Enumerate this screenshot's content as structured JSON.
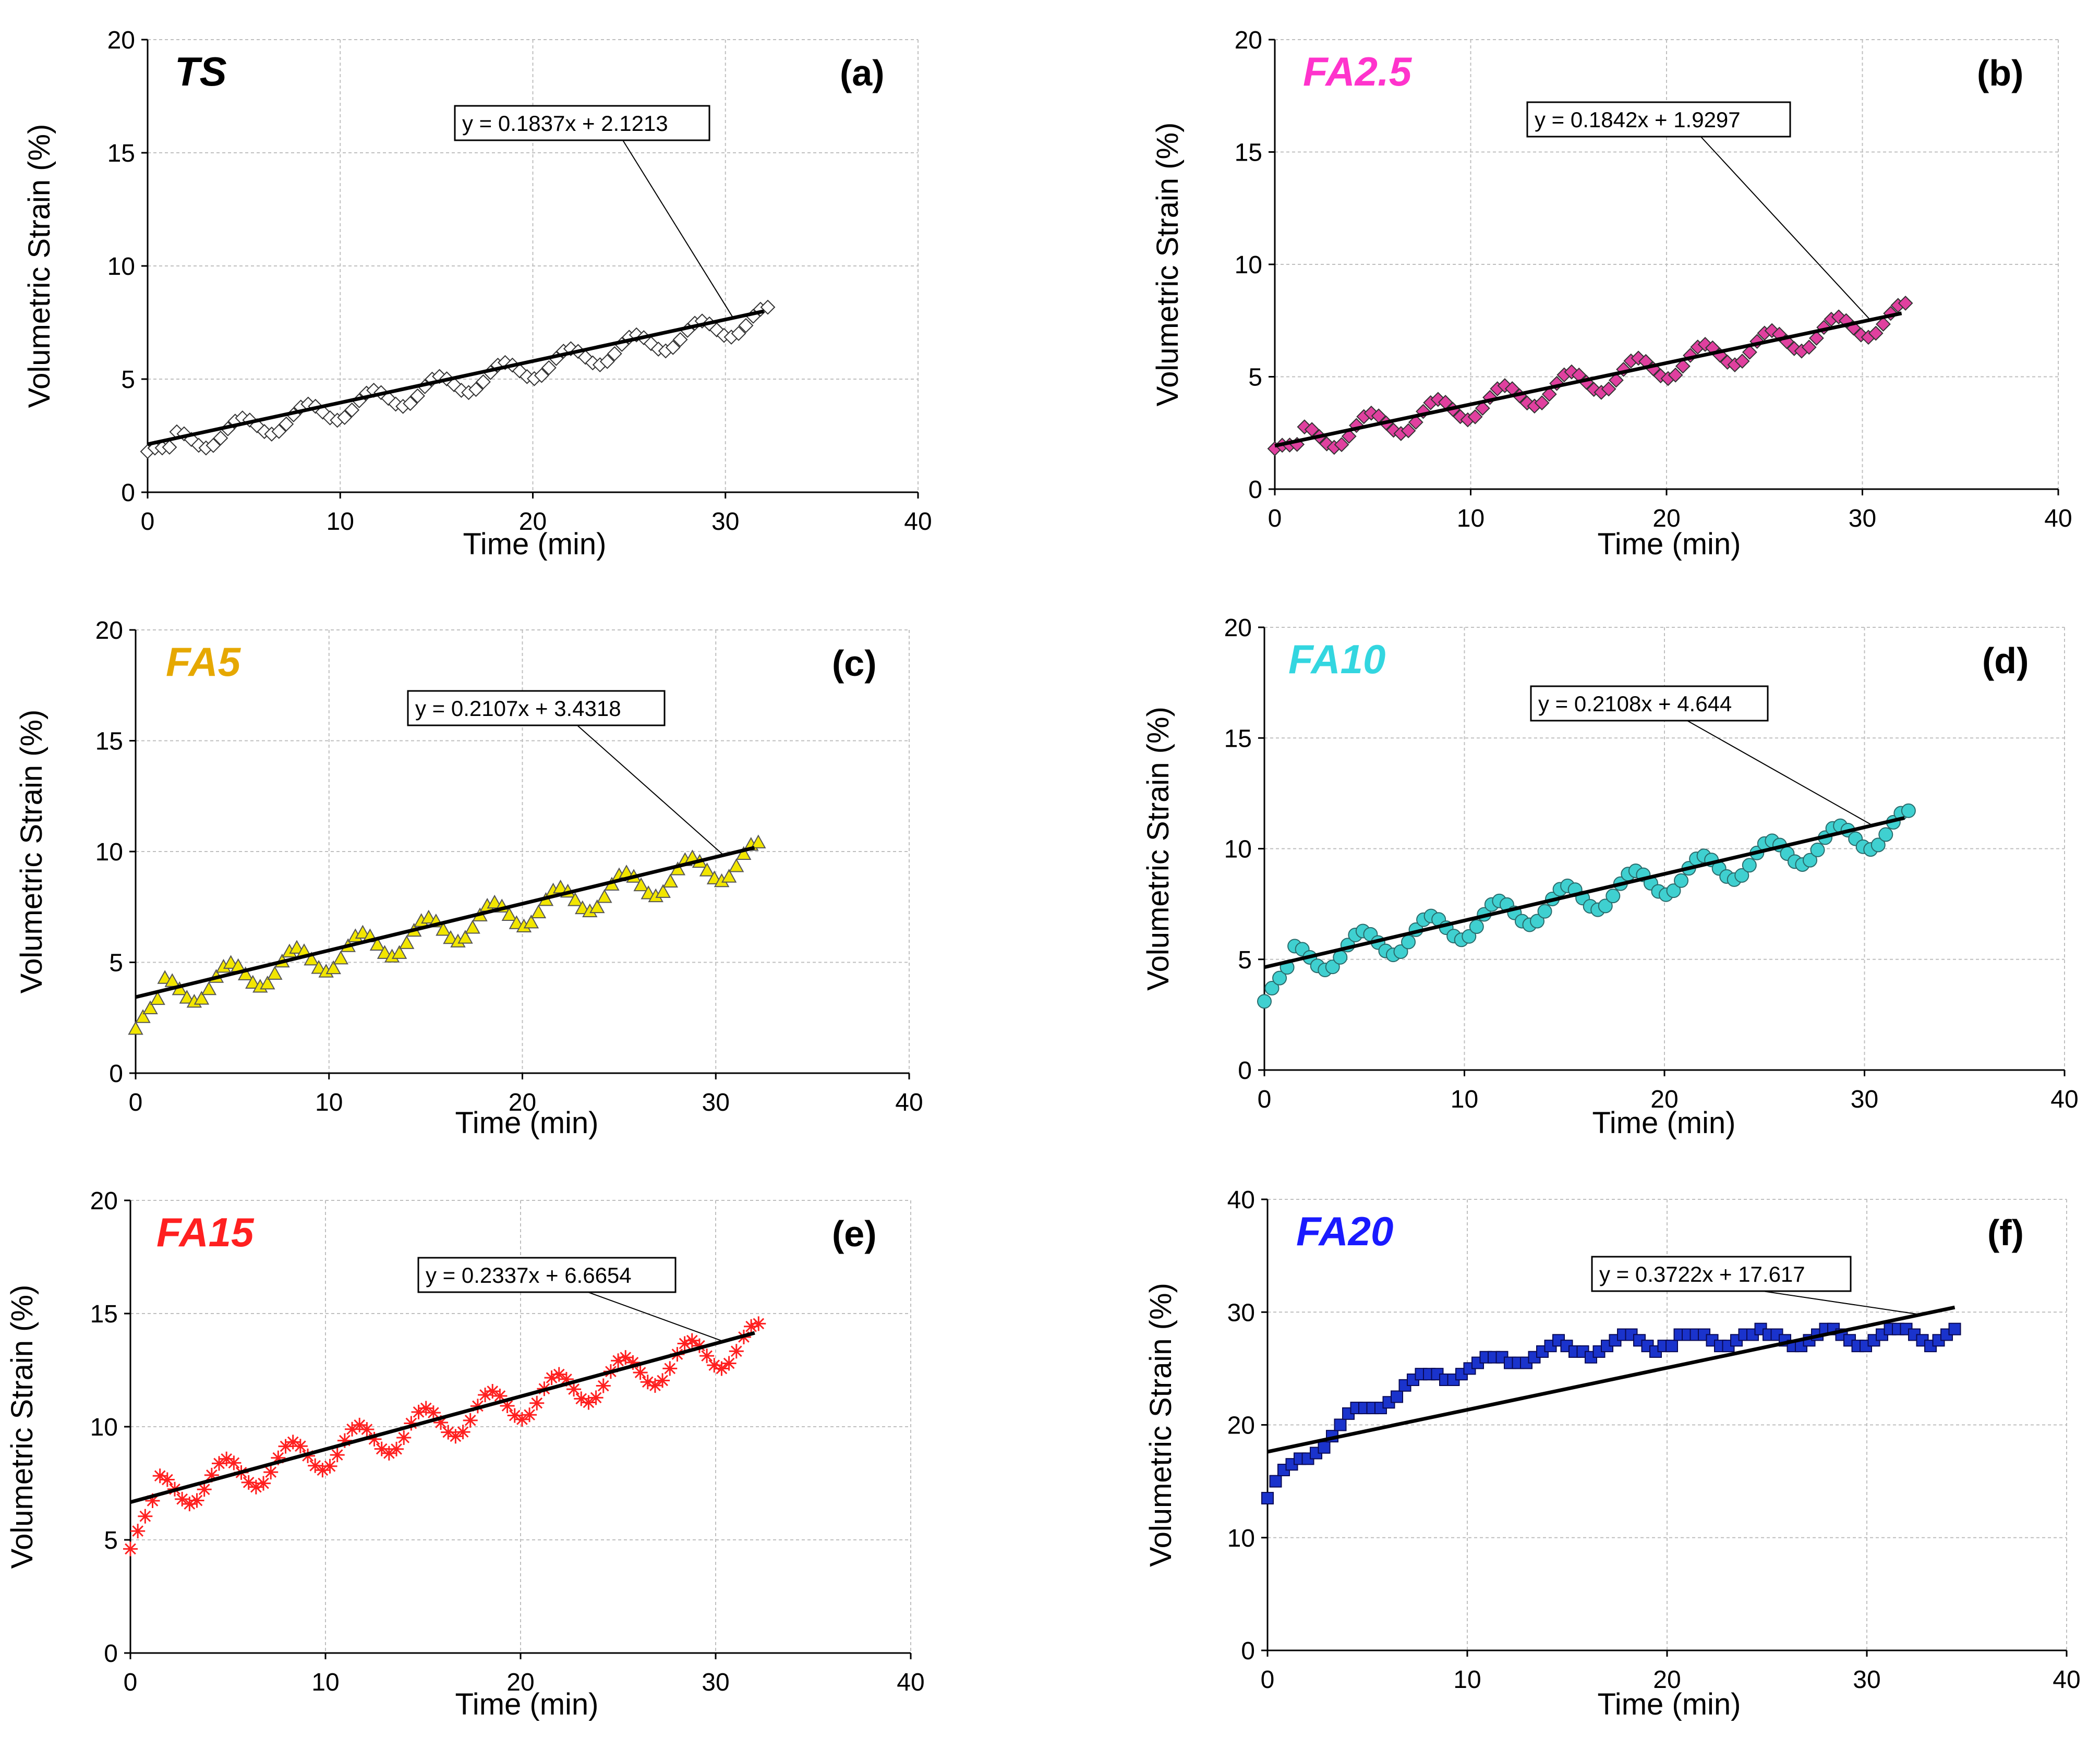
{
  "chart_data": [
    {
      "type": "scatter",
      "title": "TS",
      "panel_label": "(a)",
      "title_color": "#000000",
      "marker_color": "#ffffff",
      "marker": "diamond-open",
      "xlabel": "Time (min)",
      "ylabel": "Volumetric Strain (%)",
      "xlim": [
        0,
        40
      ],
      "ylim": [
        0,
        20
      ],
      "xticks": [
        "0",
        "10",
        "20",
        "30",
        "40"
      ],
      "yticks": [
        "0",
        "5",
        "10",
        "15",
        "20"
      ],
      "trendline": {
        "equation": "y = 0.1837x + 2.1213",
        "slope": 0.1837,
        "intercept": 2.1213,
        "x_range": [
          0,
          32
        ]
      },
      "series": {
        "x_max": 32.2,
        "base_slope": 0.18,
        "base_intercept": 1.9,
        "amplitude": 0.5,
        "period": 3.4,
        "start": 1.8
      }
    },
    {
      "type": "scatter",
      "title": "FA2.5",
      "panel_label": "(b)",
      "title_color": "#ff33cc",
      "marker_color": "#e0409f",
      "marker": "diamond",
      "xlabel": "Time (min)",
      "ylabel": "Volumetric Strain (%)",
      "xlim": [
        0,
        40
      ],
      "ylim": [
        0,
        20
      ],
      "xticks": [
        "0",
        "10",
        "20",
        "30",
        "40"
      ],
      "yticks": [
        "0",
        "5",
        "10",
        "15",
        "20"
      ],
      "trendline": {
        "equation": "y = 0.1842x + 1.9297",
        "slope": 0.1842,
        "intercept": 1.9297,
        "x_range": [
          0,
          32
        ]
      },
      "series": {
        "x_max": 32.2,
        "base_slope": 0.18,
        "base_intercept": 1.9,
        "amplitude": 0.6,
        "period": 3.4,
        "start": 1.8
      }
    },
    {
      "type": "scatter",
      "title": "FA5",
      "panel_label": "(c)",
      "title_color": "#e6a800",
      "marker_color": "#f2e600",
      "marker": "triangle",
      "xlabel": "Time (min)",
      "ylabel": "Volumetric Strain (%)",
      "xlim": [
        0,
        40
      ],
      "ylim": [
        0,
        20
      ],
      "xticks": [
        "0",
        "10",
        "20",
        "30",
        "40"
      ],
      "yticks": [
        "0",
        "5",
        "10",
        "15",
        "20"
      ],
      "trendline": {
        "equation": "y = 0.2107x + 3.4318",
        "slope": 0.2107,
        "intercept": 3.4318,
        "x_range": [
          0,
          32
        ]
      },
      "series": {
        "x_max": 32.2,
        "base_slope": 0.2,
        "base_intercept": 3.3,
        "amplitude": 0.7,
        "period": 3.4,
        "start": 2.0
      }
    },
    {
      "type": "scatter",
      "title": "FA10",
      "panel_label": "(d)",
      "title_color": "#33d6e0",
      "marker_color": "#3fd0d0",
      "marker": "circle",
      "xlabel": "Time (min)",
      "ylabel": "Volumetric Strain (%)",
      "xlim": [
        0,
        40
      ],
      "ylim": [
        0,
        20
      ],
      "xticks": [
        "0",
        "10",
        "20",
        "30",
        "40"
      ],
      "yticks": [
        "0",
        "5",
        "10",
        "15",
        "20"
      ],
      "trendline": {
        "equation": "y = 0.2108x + 4.644",
        "slope": 0.2108,
        "intercept": 4.644,
        "x_range": [
          0,
          32
        ]
      },
      "series": {
        "x_max": 32.2,
        "base_slope": 0.2,
        "base_intercept": 4.6,
        "amplitude": 0.7,
        "period": 3.4,
        "start": 3.1
      }
    },
    {
      "type": "scatter",
      "title": "FA15",
      "panel_label": "(e)",
      "title_color": "#ff2020",
      "marker_color": "#ff2020",
      "marker": "asterisk",
      "xlabel": "Time (min)",
      "ylabel": "Volumetric Strain (%)",
      "xlim": [
        0,
        40
      ],
      "ylim": [
        0,
        20
      ],
      "xticks": [
        "0",
        "10",
        "20",
        "30",
        "40"
      ],
      "yticks": [
        "0",
        "5",
        "10",
        "15",
        "20"
      ],
      "trendline": {
        "equation": "y = 0.2337x + 6.6654",
        "slope": 0.2337,
        "intercept": 6.6654,
        "x_range": [
          0,
          32
        ]
      },
      "series": {
        "x_max": 32.2,
        "base_slope": 0.22,
        "base_intercept": 6.7,
        "amplitude": 0.8,
        "period": 3.4,
        "start": 4.6
      }
    },
    {
      "type": "scatter",
      "title": "FA20",
      "panel_label": "(f)",
      "title_color": "#1a1aff",
      "marker_color": "#1a33cc",
      "marker": "square",
      "xlabel": "Time (min)",
      "ylabel": "Volumetric Strain (%)",
      "xlim": [
        0,
        40
      ],
      "ylim": [
        0,
        40
      ],
      "xticks": [
        "0",
        "10",
        "20",
        "30",
        "40"
      ],
      "yticks": [
        "0",
        "10",
        "20",
        "30",
        "40"
      ],
      "trendline": {
        "equation": "y = 0.3722x + 17.617",
        "slope": 0.3722,
        "intercept": 17.617,
        "x_range": [
          0,
          34.4
        ]
      },
      "series": {
        "x_max": 34.4,
        "curve": "saturating",
        "plateau": 28.0,
        "start": 13.5,
        "rate": 0.16,
        "amplitude": 0.7,
        "period": 3.4
      }
    }
  ]
}
